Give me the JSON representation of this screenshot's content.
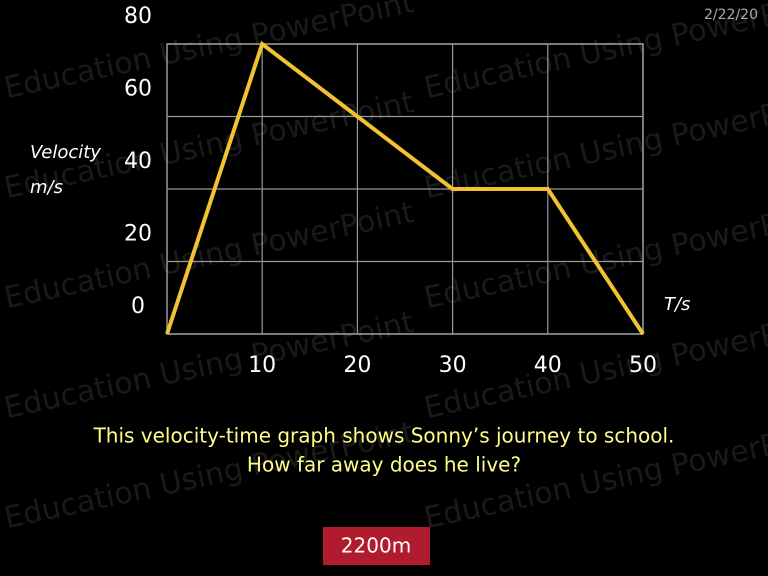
{
  "date": "2/22/20",
  "watermark": "Education Using PowerPoint",
  "chart_data": {
    "type": "line",
    "x": [
      0,
      10,
      30,
      40,
      50
    ],
    "values": [
      0,
      80,
      40,
      40,
      0
    ],
    "color": "#f2c233",
    "xlim": [
      0,
      50
    ],
    "xticks": [
      10,
      20,
      30,
      40,
      50
    ],
    "ylim": [
      0,
      80
    ],
    "yticks": [
      0,
      20,
      40,
      60,
      80
    ],
    "grid": true,
    "ylabel": "Velocity",
    "yunit": "m/s",
    "xlabel": "T/s"
  },
  "question": [
    "This velocity-time graph shows Sonny’s journey to school.",
    "How far away does he live?"
  ],
  "answer": "2200m"
}
